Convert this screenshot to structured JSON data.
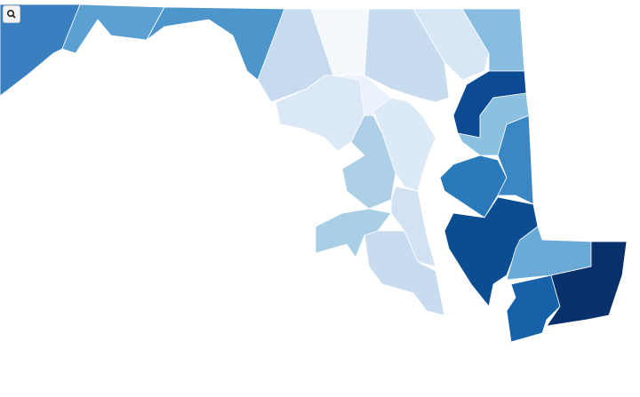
{
  "map": {
    "fill_colors": [
      "#3a80c0",
      "#5aa0d2",
      "#4d96cc",
      "#c6dbef",
      "#f4f9fe",
      "#c8dcf0",
      "#d8e7f6",
      "#89bde0",
      "#0c4a94",
      "#8cc0e0",
      "#dbe9f6",
      "#e9f1fb",
      "#dce9f6",
      "#aed0e7",
      "#a9cfe6",
      "#d0e2f3",
      "#c7dcef",
      "#2a7abb",
      "#3a87c4",
      "#0b4d91",
      "#6aaad6",
      "#1761a9",
      "#08306b"
    ]
  }
}
